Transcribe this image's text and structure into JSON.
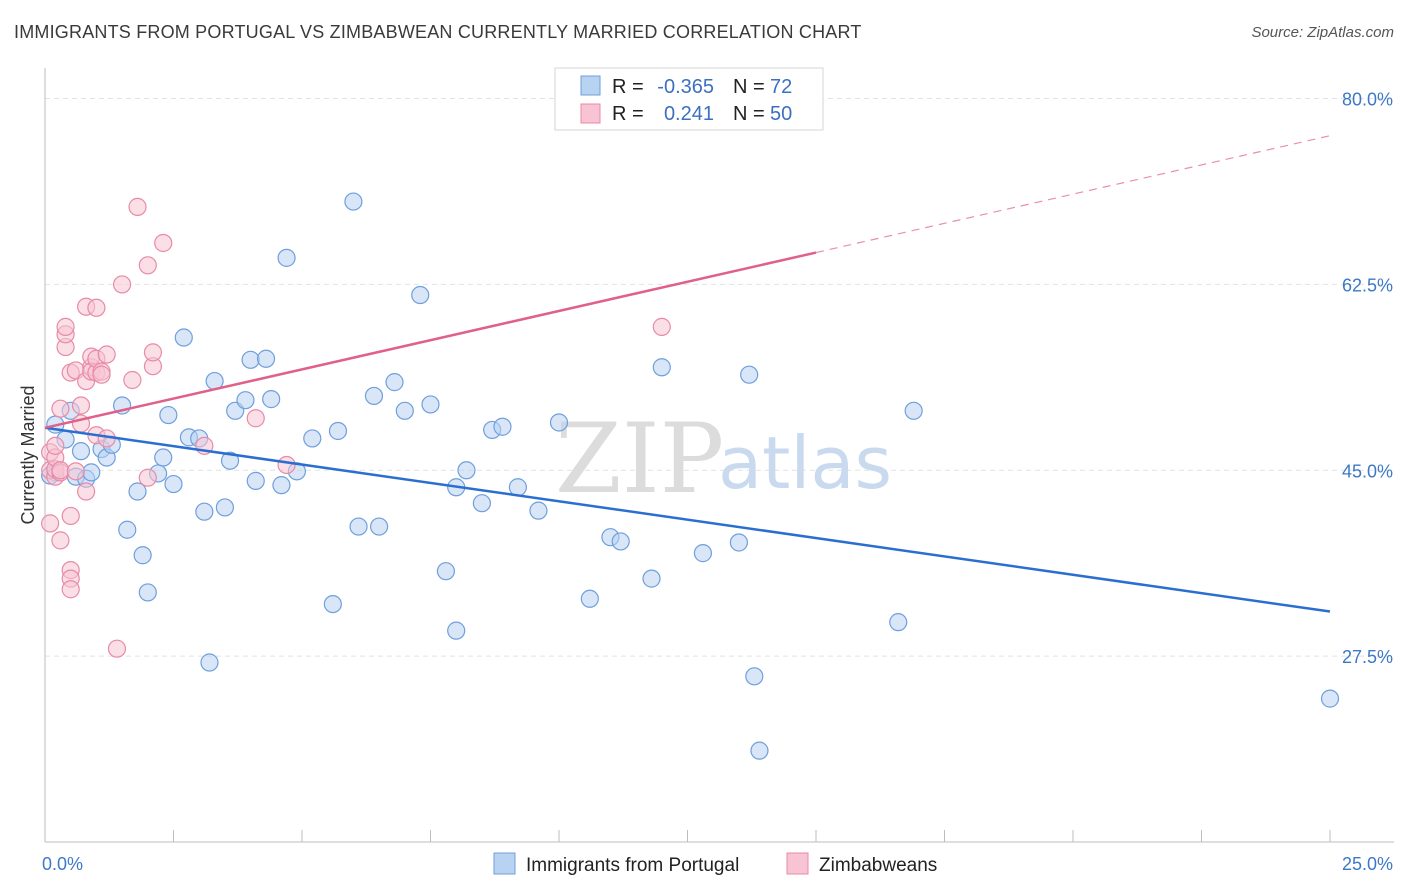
{
  "title": "IMMIGRANTS FROM PORTUGAL VS ZIMBABWEAN CURRENTLY MARRIED CORRELATION CHART",
  "source": "Source: ZipAtlas.com",
  "watermark": {
    "part1": "ZIP",
    "part2": "atlas"
  },
  "colors": {
    "blue_fill": "#b8d2f2",
    "blue_stroke": "#6f9fdc",
    "blue_line": "#2a6fd0",
    "pink_fill": "#f8c4d4",
    "pink_stroke": "#e88aa8",
    "pink_line": "#e0608a",
    "tick_blue": "#3d78c8"
  },
  "legend": {
    "rows": [
      {
        "r_label": "R =",
        "r_value": "-0.365",
        "n_label": "N =",
        "n_value": "72"
      },
      {
        "r_label": "R =",
        "r_value": "0.241",
        "n_label": "N =",
        "n_value": "50"
      }
    ]
  },
  "chart_data": {
    "type": "scatter",
    "ylabel": "Currently Married",
    "xlim": [
      0,
      25
    ],
    "ylim": [
      10,
      82.5
    ],
    "x_tick_labels": [
      {
        "value": 0,
        "label": "0.0%"
      },
      {
        "value": 25,
        "label": "25.0%"
      }
    ],
    "y_tick_labels": [
      {
        "value": 80,
        "label": "80.0%"
      },
      {
        "value": 62.5,
        "label": "62.5%"
      },
      {
        "value": 45,
        "label": "45.0%"
      },
      {
        "value": 27.5,
        "label": "27.5%"
      }
    ],
    "grid": "horizontal dashed",
    "legend_position": "top-center",
    "series": [
      {
        "name": "Immigrants from Portugal",
        "color": "#b8d2f2",
        "trend": {
          "x": [
            0,
            25
          ],
          "y": [
            49,
            31.7
          ]
        },
        "points": [
          [
            0.2,
            44.8
          ],
          [
            0.2,
            49.3
          ],
          [
            0.4,
            47.9
          ],
          [
            0.5,
            50.6
          ],
          [
            0.6,
            44.4
          ],
          [
            0.7,
            46.8
          ],
          [
            0.8,
            44.2
          ],
          [
            0.9,
            44.8
          ],
          [
            1.1,
            47.0
          ],
          [
            1.2,
            46.2
          ],
          [
            1.3,
            47.4
          ],
          [
            1.5,
            51.1
          ],
          [
            1.6,
            39.4
          ],
          [
            1.8,
            43.0
          ],
          [
            1.9,
            37.0
          ],
          [
            2.0,
            33.5
          ],
          [
            2.2,
            44.7
          ],
          [
            2.3,
            46.2
          ],
          [
            2.4,
            50.2
          ],
          [
            2.5,
            43.7
          ],
          [
            2.7,
            57.5
          ],
          [
            2.8,
            48.1
          ],
          [
            3.0,
            48.0
          ],
          [
            3.1,
            41.1
          ],
          [
            3.2,
            26.9
          ],
          [
            3.3,
            53.4
          ],
          [
            3.5,
            41.5
          ],
          [
            3.6,
            45.9
          ],
          [
            3.7,
            50.6
          ],
          [
            3.9,
            51.6
          ],
          [
            4.0,
            55.4
          ],
          [
            4.1,
            44.0
          ],
          [
            4.3,
            55.5
          ],
          [
            4.4,
            51.7
          ],
          [
            4.6,
            43.6
          ],
          [
            4.7,
            65.0
          ],
          [
            4.9,
            44.9
          ],
          [
            5.2,
            48.0
          ],
          [
            5.6,
            32.4
          ],
          [
            5.7,
            48.7
          ],
          [
            6.0,
            70.3
          ],
          [
            6.1,
            39.7
          ],
          [
            6.4,
            52.0
          ],
          [
            6.5,
            39.7
          ],
          [
            6.8,
            53.3
          ],
          [
            7.0,
            50.6
          ],
          [
            7.3,
            61.5
          ],
          [
            7.5,
            51.2
          ],
          [
            7.8,
            35.5
          ],
          [
            8.0,
            29.9
          ],
          [
            8.0,
            43.4
          ],
          [
            8.2,
            45.0
          ],
          [
            8.5,
            41.9
          ],
          [
            8.7,
            48.8
          ],
          [
            8.9,
            49.1
          ],
          [
            9.2,
            43.4
          ],
          [
            9.6,
            41.2
          ],
          [
            10.0,
            49.5
          ],
          [
            10.6,
            32.9
          ],
          [
            11.0,
            38.7
          ],
          [
            11.2,
            38.3
          ],
          [
            11.8,
            34.8
          ],
          [
            12.0,
            54.7
          ],
          [
            12.8,
            37.2
          ],
          [
            13.5,
            38.2
          ],
          [
            13.7,
            54.0
          ],
          [
            13.8,
            25.6
          ],
          [
            13.9,
            18.6
          ],
          [
            16.6,
            30.7
          ],
          [
            16.9,
            50.6
          ],
          [
            25.0,
            23.5
          ],
          [
            0.1,
            44.5
          ]
        ]
      },
      {
        "name": "Zimbabweans",
        "color": "#f8c4d4",
        "trend": {
          "x": [
            0,
            15
          ],
          "y": [
            49,
            65.5
          ]
        },
        "trend_dashed": {
          "x": [
            15,
            25
          ],
          "y": [
            65.5,
            76.5
          ]
        },
        "points": [
          [
            0.1,
            40.0
          ],
          [
            0.1,
            45.0
          ],
          [
            0.1,
            46.7
          ],
          [
            0.2,
            44.4
          ],
          [
            0.2,
            45.1
          ],
          [
            0.2,
            46.2
          ],
          [
            0.2,
            47.3
          ],
          [
            0.3,
            38.4
          ],
          [
            0.3,
            44.8
          ],
          [
            0.3,
            50.8
          ],
          [
            0.3,
            45.0
          ],
          [
            0.4,
            56.6
          ],
          [
            0.4,
            57.8
          ],
          [
            0.4,
            58.5
          ],
          [
            0.5,
            40.7
          ],
          [
            0.5,
            35.6
          ],
          [
            0.5,
            34.8
          ],
          [
            0.5,
            33.8
          ],
          [
            0.5,
            54.2
          ],
          [
            0.6,
            54.4
          ],
          [
            0.6,
            44.9
          ],
          [
            0.7,
            49.4
          ],
          [
            0.7,
            51.1
          ],
          [
            0.8,
            43.0
          ],
          [
            0.8,
            53.4
          ],
          [
            0.8,
            60.4
          ],
          [
            0.9,
            54.7
          ],
          [
            0.9,
            55.7
          ],
          [
            0.9,
            54.3
          ],
          [
            1.0,
            60.3
          ],
          [
            1.0,
            54.2
          ],
          [
            1.0,
            48.3
          ],
          [
            1.0,
            55.5
          ],
          [
            1.1,
            54.3
          ],
          [
            1.1,
            54.0
          ],
          [
            1.2,
            55.9
          ],
          [
            1.2,
            48.0
          ],
          [
            1.4,
            28.2
          ],
          [
            1.5,
            62.5
          ],
          [
            1.7,
            53.5
          ],
          [
            1.8,
            69.8
          ],
          [
            2.0,
            64.3
          ],
          [
            2.0,
            44.3
          ],
          [
            2.1,
            54.8
          ],
          [
            2.1,
            56.1
          ],
          [
            2.3,
            66.4
          ],
          [
            3.1,
            47.3
          ],
          [
            4.1,
            49.9
          ],
          [
            4.7,
            45.5
          ],
          [
            12.0,
            58.5
          ]
        ]
      }
    ]
  },
  "bottom_legend": {
    "items": [
      {
        "label": "Immigrants from Portugal"
      },
      {
        "label": "Zimbabweans"
      }
    ]
  }
}
